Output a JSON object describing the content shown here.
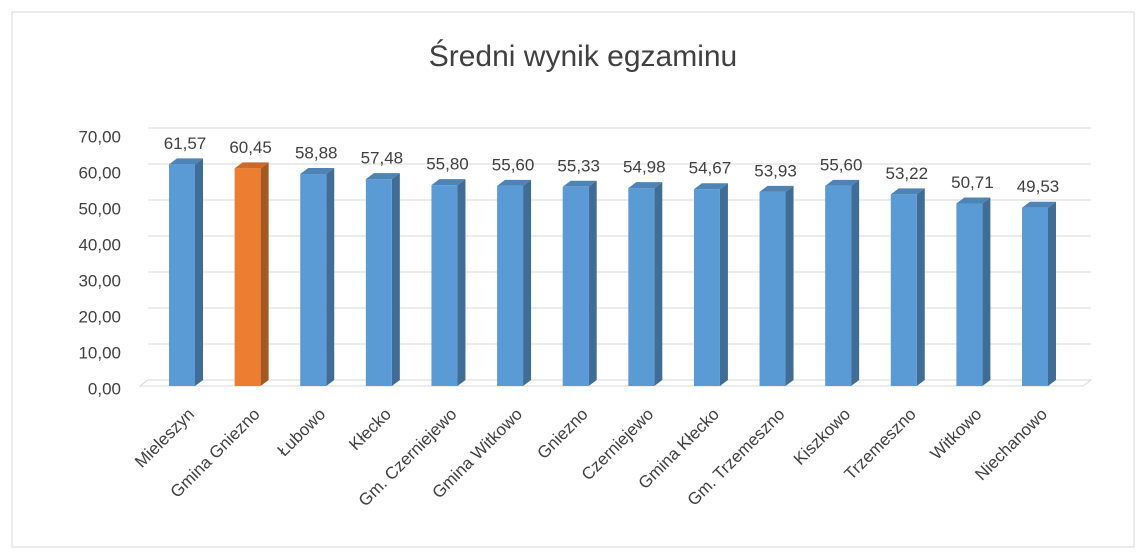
{
  "chart_data": {
    "type": "bar3d",
    "title": "Średni wynik egzaminu",
    "categories": [
      "Mieleszyn",
      "Gmina Gniezno",
      "Łubowo",
      "Kłecko",
      "Gm. Czerniejewo",
      "Gmina Witkowo",
      "Gniezno",
      "Czerniejewo",
      "Gmina Kłecko",
      "Gm. Trzemeszno",
      "Kiszkowo",
      "Trzemeszno",
      "Witkowo",
      "Niechanowo"
    ],
    "values": [
      61.57,
      60.45,
      58.88,
      57.48,
      55.8,
      55.6,
      55.33,
      54.98,
      54.67,
      53.93,
      55.6,
      53.22,
      50.71,
      49.53
    ],
    "value_labels": [
      "61,57",
      "60,45",
      "58,88",
      "57,48",
      "55,80",
      "55,60",
      "55,33",
      "54,98",
      "54,67",
      "53,93",
      "55,60",
      "53,22",
      "50,71",
      "49,53"
    ],
    "colors": [
      "#5b9bd5",
      "#ed7d31",
      "#5b9bd5",
      "#5b9bd5",
      "#5b9bd5",
      "#5b9bd5",
      "#5b9bd5",
      "#5b9bd5",
      "#5b9bd5",
      "#5b9bd5",
      "#5b9bd5",
      "#5b9bd5",
      "#5b9bd5",
      "#5b9bd5"
    ],
    "ylim": [
      0,
      70
    ],
    "yticks": [
      {
        "value": 0,
        "label": "0,00"
      },
      {
        "value": 10,
        "label": "10,00"
      },
      {
        "value": 20,
        "label": "20,00"
      },
      {
        "value": 30,
        "label": "30,00"
      },
      {
        "value": 40,
        "label": "40,00"
      },
      {
        "value": 50,
        "label": "50,00"
      },
      {
        "value": 60,
        "label": "60,00"
      },
      {
        "value": 70,
        "label": "70,00"
      }
    ],
    "grid": true
  }
}
